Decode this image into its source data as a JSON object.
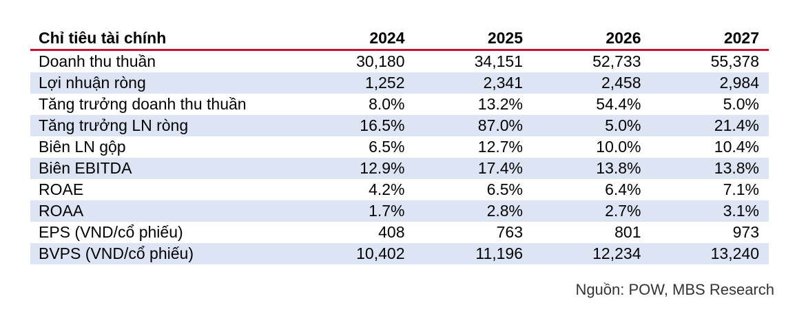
{
  "table": {
    "header": {
      "label": "Chỉ tiêu tài chính",
      "years": [
        "2024",
        "2025",
        "2026",
        "2027"
      ]
    },
    "rows": [
      {
        "label": "Doanh thu thuần",
        "values": [
          "30,180",
          "34,151",
          "52,733",
          "55,378"
        ]
      },
      {
        "label": "Lợi nhuận ròng",
        "values": [
          "1,252",
          "2,341",
          "2,458",
          "2,984"
        ]
      },
      {
        "label": "Tăng trưởng doanh thu thuần",
        "values": [
          "8.0%",
          "13.2%",
          "54.4%",
          "5.0%"
        ]
      },
      {
        "label": "Tăng trưởng LN ròng",
        "values": [
          "16.5%",
          "87.0%",
          "5.0%",
          "21.4%"
        ]
      },
      {
        "label": "Biên LN gộp",
        "values": [
          "6.5%",
          "12.7%",
          "10.0%",
          "10.4%"
        ]
      },
      {
        "label": "Biên EBITDA",
        "values": [
          "12.9%",
          "17.4%",
          "13.8%",
          "13.8%"
        ]
      },
      {
        "label": "ROAE",
        "values": [
          "4.2%",
          "6.5%",
          "6.4%",
          "7.1%"
        ]
      },
      {
        "label": "ROAA",
        "values": [
          "1.7%",
          "2.8%",
          "2.7%",
          "3.1%"
        ]
      },
      {
        "label": "EPS (VND/cổ phiếu)",
        "values": [
          "408",
          "763",
          "801",
          "973"
        ]
      },
      {
        "label": "BVPS (VND/cổ phiếu)",
        "values": [
          "10,402",
          "11,196",
          "12,234",
          "13,240"
        ]
      }
    ]
  },
  "source": "Nguồn: POW, MBS Research",
  "colors": {
    "header_rule": "#c8102e",
    "row_shade": "#dde4f3"
  }
}
